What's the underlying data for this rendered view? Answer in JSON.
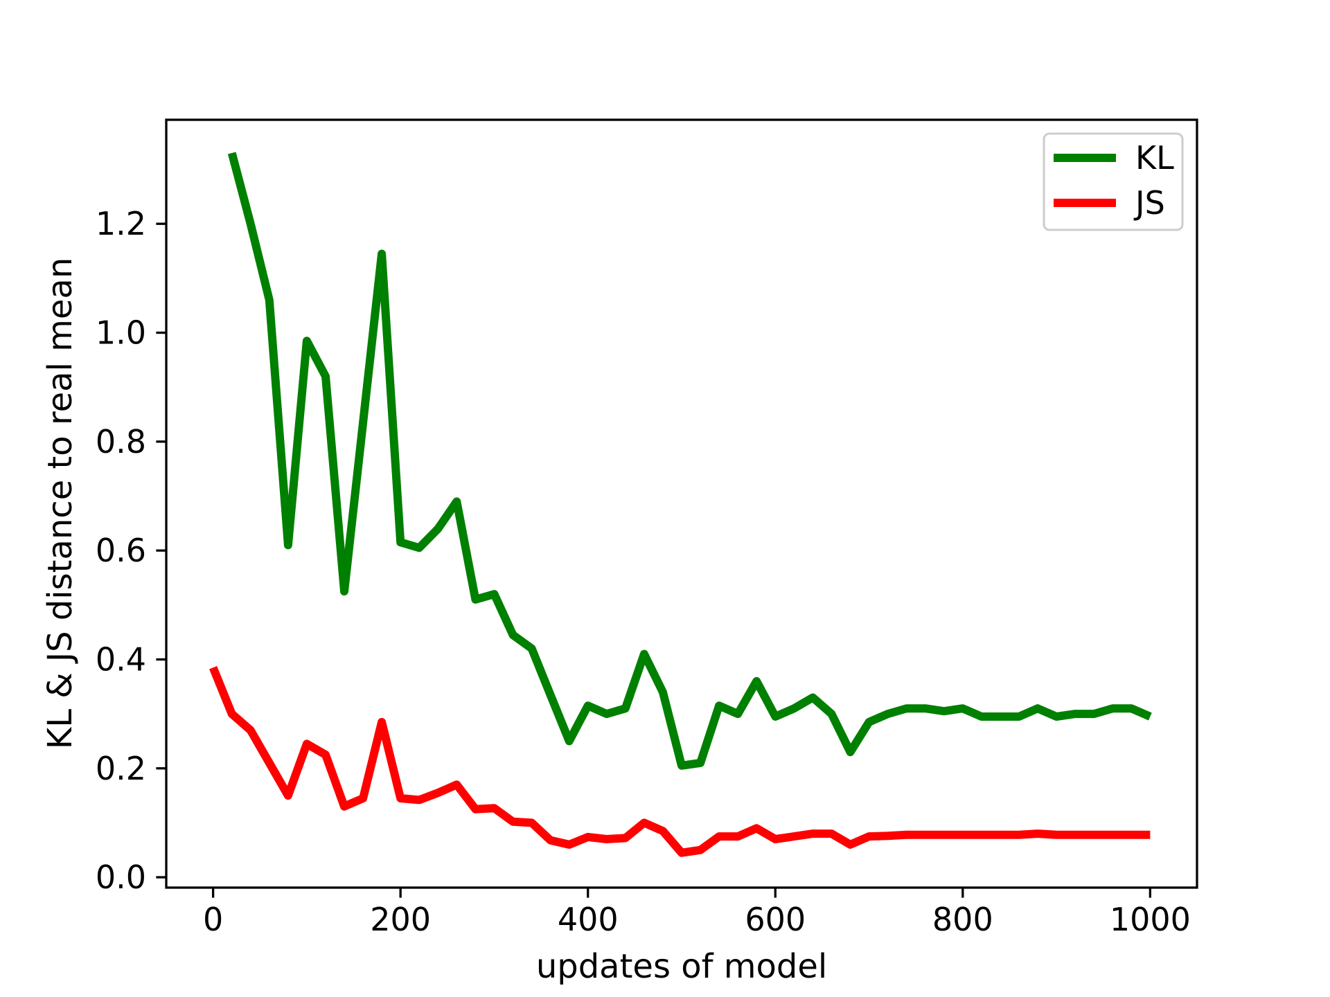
{
  "figure": {
    "background": "#ffffff"
  },
  "chart_data": {
    "type": "line",
    "title": "",
    "xlabel": "updates of model",
    "ylabel": "KL & JS distance to real mean",
    "xlim": [
      -50,
      1050
    ],
    "ylim": [
      -0.019,
      1.391
    ],
    "grid": false,
    "legend_position": "upper right",
    "legend_edge_color": "#cccccc",
    "xticks_values": [
      0,
      200,
      400,
      600,
      800,
      1000
    ],
    "xticks_labels": [
      "0",
      "200",
      "400",
      "600",
      "800",
      "1000"
    ],
    "yticks_values": [
      0.0,
      0.2,
      0.4,
      0.6,
      0.8,
      1.0,
      1.2
    ],
    "yticks_labels": [
      "0.0",
      "0.2",
      "0.4",
      "0.6",
      "0.8",
      "1.0",
      "1.2"
    ],
    "series": [
      {
        "name": "KL",
        "color": "#008000",
        "x": [
          20,
          40,
          60,
          80,
          100,
          120,
          140,
          160,
          180,
          200,
          220,
          240,
          260,
          280,
          300,
          320,
          340,
          360,
          380,
          400,
          420,
          440,
          460,
          480,
          500,
          520,
          540,
          560,
          580,
          600,
          620,
          640,
          660,
          680,
          700,
          720,
          740,
          760,
          780,
          800,
          820,
          840,
          860,
          880,
          900,
          920,
          940,
          960,
          980,
          1000
        ],
        "values": [
          1.33,
          1.2,
          1.06,
          0.61,
          0.985,
          0.92,
          0.525,
          0.835,
          1.145,
          0.615,
          0.605,
          0.64,
          0.69,
          0.51,
          0.52,
          0.445,
          0.42,
          0.335,
          0.25,
          0.315,
          0.3,
          0.31,
          0.41,
          0.34,
          0.205,
          0.21,
          0.315,
          0.3,
          0.36,
          0.295,
          0.31,
          0.33,
          0.3,
          0.23,
          0.285,
          0.3,
          0.31,
          0.31,
          0.305,
          0.31,
          0.295,
          0.295,
          0.295,
          0.31,
          0.295,
          0.3,
          0.3,
          0.31,
          0.31,
          0.295
        ]
      },
      {
        "name": "JS",
        "color": "#ff0000",
        "x": [
          0,
          20,
          40,
          60,
          80,
          100,
          120,
          140,
          160,
          180,
          200,
          220,
          240,
          260,
          280,
          300,
          320,
          340,
          360,
          380,
          400,
          420,
          440,
          460,
          480,
          500,
          520,
          540,
          560,
          580,
          600,
          620,
          640,
          660,
          680,
          700,
          720,
          740,
          760,
          780,
          800,
          820,
          840,
          860,
          880,
          900,
          920,
          940,
          960,
          980,
          1000
        ],
        "values": [
          0.385,
          0.3,
          0.27,
          0.21,
          0.15,
          0.245,
          0.225,
          0.13,
          0.145,
          0.285,
          0.145,
          0.142,
          0.155,
          0.17,
          0.125,
          0.127,
          0.102,
          0.1,
          0.068,
          0.06,
          0.074,
          0.07,
          0.072,
          0.1,
          0.085,
          0.045,
          0.05,
          0.075,
          0.075,
          0.09,
          0.07,
          0.075,
          0.08,
          0.08,
          0.06,
          0.075,
          0.076,
          0.078,
          0.078,
          0.078,
          0.078,
          0.078,
          0.078,
          0.078,
          0.08,
          0.078,
          0.078,
          0.078,
          0.078,
          0.078,
          0.078
        ]
      }
    ]
  }
}
